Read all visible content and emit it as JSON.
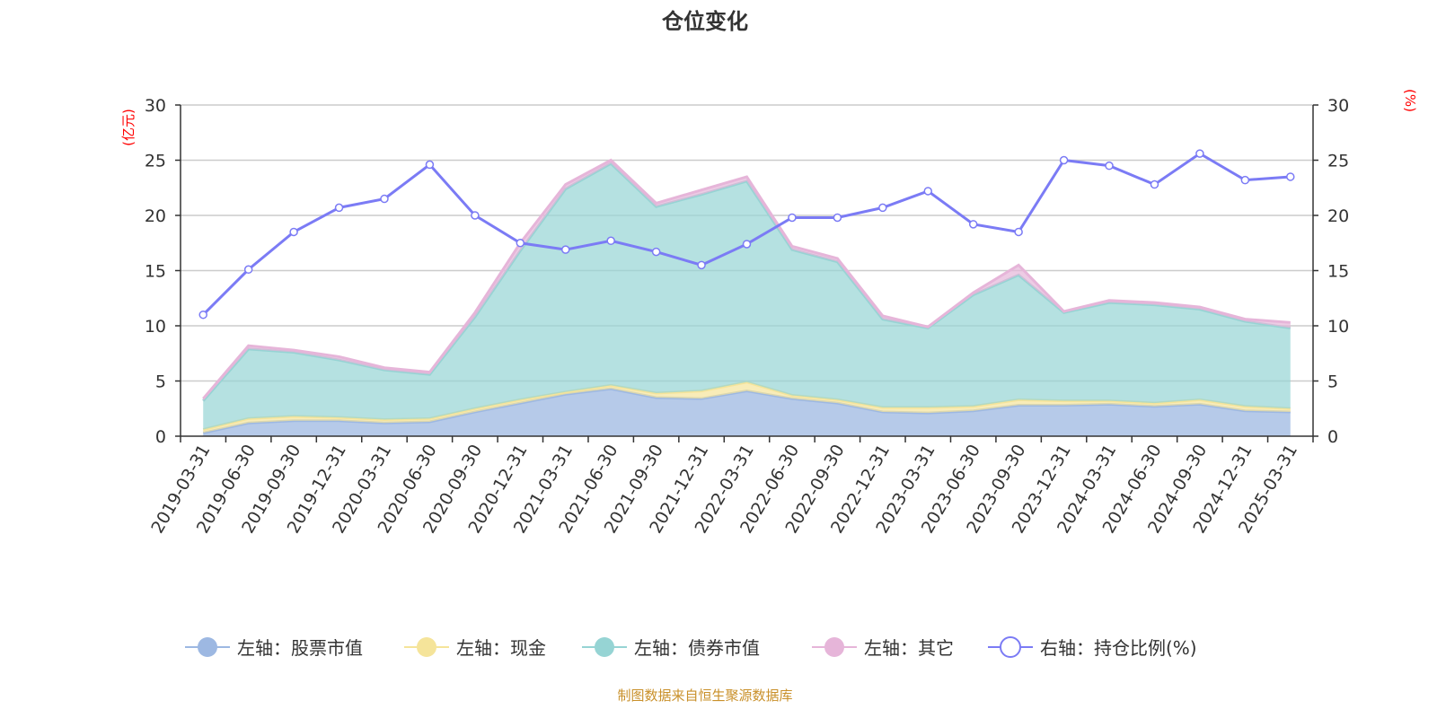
{
  "chart_data": {
    "type": "area",
    "title": "仓位变化",
    "left_unit": "(亿元)",
    "right_unit": "(%)",
    "left_ylim": [
      0,
      30
    ],
    "right_ylim": [
      0,
      30
    ],
    "left_ticks": [
      "0",
      "5",
      "10",
      "15",
      "20",
      "25",
      "30"
    ],
    "right_ticks": [
      "0",
      "5",
      "10",
      "15",
      "20",
      "25",
      "30"
    ],
    "grid": true,
    "legend_placement": "bottom",
    "categories": [
      "2019-03-31",
      "2019-06-30",
      "2019-09-30",
      "2019-12-31",
      "2020-03-31",
      "2020-06-30",
      "2020-09-30",
      "2020-12-31",
      "2021-03-31",
      "2021-06-30",
      "2021-09-30",
      "2021-12-31",
      "2022-03-31",
      "2022-06-30",
      "2022-09-30",
      "2022-12-31",
      "2023-03-31",
      "2023-06-30",
      "2023-09-30",
      "2023-12-31",
      "2024-03-31",
      "2024-06-30",
      "2024-09-30",
      "2024-12-31",
      "2025-03-31"
    ],
    "stacked_series": [
      {
        "name": "左轴：股票市值",
        "color": "#9db8e2",
        "values": [
          0.3,
          1.2,
          1.4,
          1.4,
          1.2,
          1.3,
          2.2,
          3.0,
          3.8,
          4.3,
          3.5,
          3.4,
          4.1,
          3.4,
          3.0,
          2.2,
          2.1,
          2.3,
          2.8,
          2.8,
          2.9,
          2.7,
          2.9,
          2.3,
          2.2
        ]
      },
      {
        "name": "左轴：现金",
        "color": "#f5e49a",
        "values": [
          0.3,
          0.4,
          0.4,
          0.3,
          0.3,
          0.3,
          0.3,
          0.3,
          0.2,
          0.3,
          0.4,
          0.7,
          0.8,
          0.3,
          0.3,
          0.4,
          0.5,
          0.4,
          0.5,
          0.4,
          0.3,
          0.3,
          0.4,
          0.4,
          0.3
        ]
      },
      {
        "name": "左轴：债券市值",
        "color": "#96d4d4",
        "values": [
          2.6,
          6.3,
          5.8,
          5.2,
          4.5,
          4.0,
          8.3,
          13.5,
          18.4,
          20.1,
          16.9,
          17.8,
          18.2,
          13.2,
          12.5,
          8.0,
          7.2,
          10.1,
          11.3,
          8.0,
          8.9,
          8.9,
          8.2,
          7.7,
          7.3
        ]
      },
      {
        "name": "左轴：其它",
        "color": "#e6b5d9",
        "values": [
          0.2,
          0.3,
          0.2,
          0.3,
          0.2,
          0.2,
          0.4,
          0.7,
          0.4,
          0.3,
          0.3,
          0.4,
          0.4,
          0.3,
          0.3,
          0.3,
          0.1,
          0.2,
          0.9,
          0.1,
          0.2,
          0.2,
          0.2,
          0.2,
          0.5
        ]
      }
    ],
    "line_series": {
      "name": "右轴：持仓比例(%)",
      "color": "#7b7bf5",
      "axis": "right",
      "values": [
        11.0,
        15.1,
        18.5,
        20.7,
        21.5,
        24.6,
        20.0,
        17.5,
        16.9,
        17.7,
        16.7,
        15.5,
        17.4,
        19.8,
        19.8,
        20.7,
        22.2,
        19.2,
        18.5,
        25.0,
        24.5,
        22.8,
        25.6,
        23.2,
        23.5
      ]
    }
  },
  "footer": "制图数据来自恒生聚源数据库"
}
